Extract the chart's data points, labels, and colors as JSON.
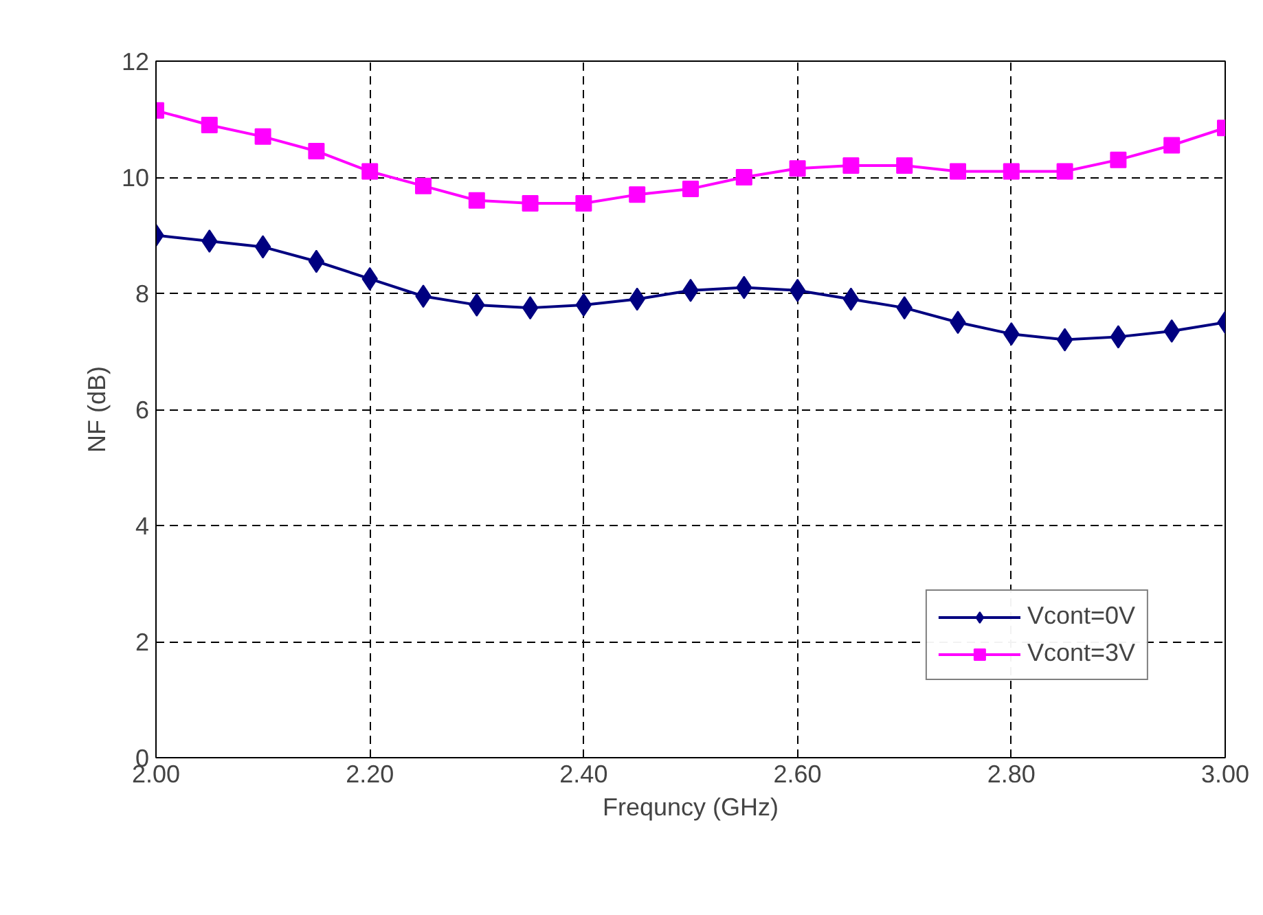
{
  "chart_data": {
    "type": "line",
    "xlabel": "Frequncy (GHz)",
    "ylabel": "NF (dB)",
    "x": [
      2.0,
      2.05,
      2.1,
      2.15,
      2.2,
      2.25,
      2.3,
      2.35,
      2.4,
      2.45,
      2.5,
      2.55,
      2.6,
      2.65,
      2.7,
      2.75,
      2.8,
      2.85,
      2.9,
      2.95,
      3.0
    ],
    "series": [
      {
        "name": "Vcont=0V",
        "color": "#000080",
        "marker": "diamond",
        "values": [
          9.0,
          8.9,
          8.8,
          8.55,
          8.25,
          7.95,
          7.8,
          7.75,
          7.8,
          7.9,
          8.05,
          8.1,
          8.05,
          7.9,
          7.75,
          7.5,
          7.3,
          7.2,
          7.25,
          7.35,
          7.5
        ]
      },
      {
        "name": "Vcont=3V",
        "color": "#ff00ff",
        "marker": "square",
        "values": [
          11.15,
          10.9,
          10.7,
          10.45,
          10.1,
          9.85,
          9.6,
          9.55,
          9.55,
          9.7,
          9.8,
          10.0,
          10.15,
          10.2,
          10.2,
          10.1,
          10.1,
          10.1,
          10.3,
          10.55,
          10.85
        ]
      }
    ],
    "xlim": [
      2.0,
      3.0
    ],
    "ylim": [
      0,
      12
    ],
    "xticks": [
      {
        "value": 2.0,
        "label": "2.00"
      },
      {
        "value": 2.2,
        "label": "2.20"
      },
      {
        "value": 2.4,
        "label": "2.40"
      },
      {
        "value": 2.6,
        "label": "2.60"
      },
      {
        "value": 2.8,
        "label": "2.80"
      },
      {
        "value": 3.0,
        "label": "3.00"
      }
    ],
    "yticks": [
      0,
      2,
      4,
      6,
      8,
      10,
      12
    ],
    "grid": true,
    "legend": "bottom right",
    "line_style": "solid"
  }
}
